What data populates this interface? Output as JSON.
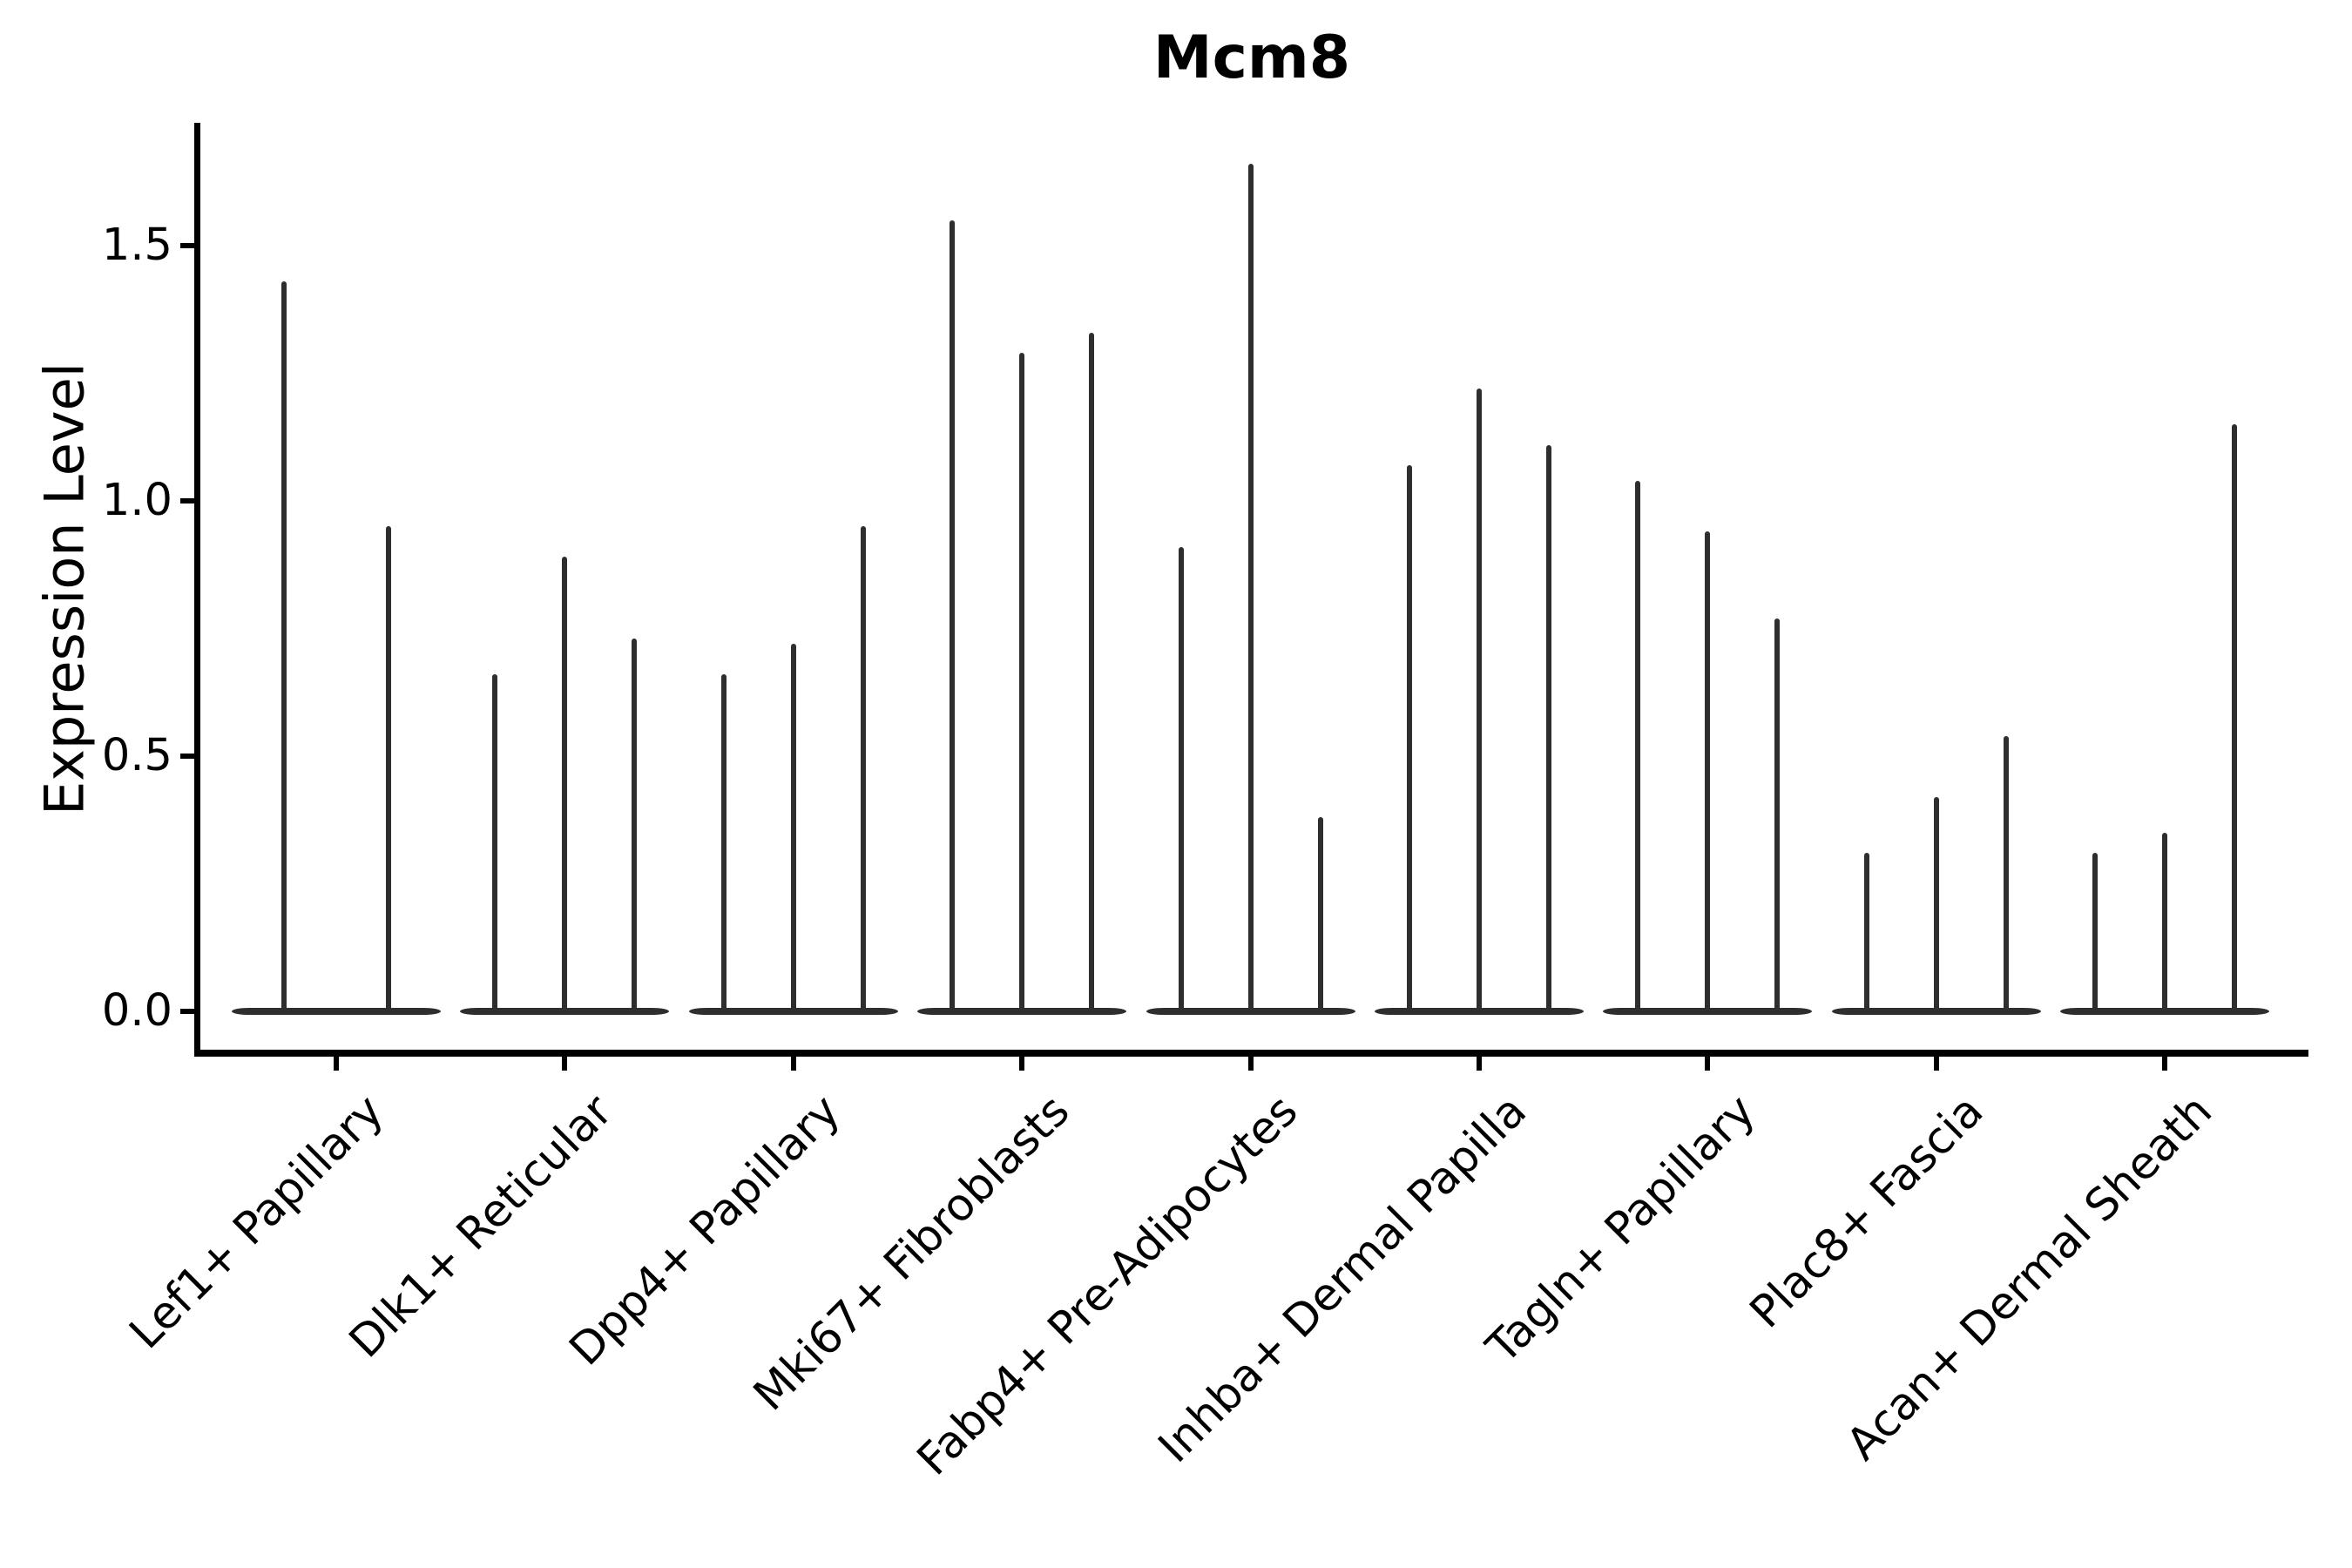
{
  "figure": {
    "title": "Mcm8",
    "y_axis_label": "Expression Level"
  },
  "chart_data": {
    "type": "violin",
    "title": "Mcm8",
    "xlabel": "",
    "ylabel": "Expression Level",
    "ylim": [
      -0.08,
      1.75
    ],
    "yticks": [
      0.0,
      0.5,
      1.0,
      1.5
    ],
    "ytick_labels": [
      "0.0",
      "0.5",
      "1.0",
      "1.5"
    ],
    "grid": false,
    "legend": "none",
    "xtick_rotation_deg": 45,
    "spines": [
      "left",
      "bottom"
    ],
    "description": "Thin spike-shaped violins (density concentrated at 0 with a narrow spike up to the max expression value); each category shows 2-3 violins side by side",
    "categories": [
      "Lef1+ Papillary",
      "Dlk1+ Reticular",
      "Dpp4+ Papillary",
      "Mki67+ Fibroblasts",
      "Fabp4+ Pre-Adipocytes",
      "Inhba+ Dermal Papilla",
      "Tagln+ Papillary",
      "Plac8+ Fascia",
      "Acan+ Dermal Sheath"
    ],
    "series": [
      {
        "category": "Lef1+ Papillary",
        "violin_max_expression": [
          1.43,
          0.95
        ]
      },
      {
        "category": "Dlk1+ Reticular",
        "violin_max_expression": [
          0.66,
          0.89,
          0.73
        ]
      },
      {
        "category": "Dpp4+ Papillary",
        "violin_max_expression": [
          0.66,
          0.72,
          0.95
        ]
      },
      {
        "category": "Mki67+ Fibroblasts",
        "violin_max_expression": [
          1.55,
          1.29,
          1.33
        ]
      },
      {
        "category": "Fabp4+ Pre-Adipocytes",
        "violin_max_expression": [
          0.91,
          1.66,
          0.38
        ]
      },
      {
        "category": "Inhba+ Dermal Papilla",
        "violin_max_expression": [
          1.07,
          1.22,
          1.11
        ]
      },
      {
        "category": "Tagln+ Papillary",
        "violin_max_expression": [
          1.04,
          0.94,
          0.77
        ]
      },
      {
        "category": "Plac8+ Fascia",
        "violin_max_expression": [
          0.31,
          0.42,
          0.54
        ]
      },
      {
        "category": "Acan+ Dermal Sheath",
        "violin_max_expression": [
          0.31,
          0.35,
          1.15
        ]
      }
    ],
    "colors": {
      "violin_fill": "#2e2e2e",
      "axis": "#000000",
      "text": "#000000",
      "background": "#ffffff"
    }
  }
}
